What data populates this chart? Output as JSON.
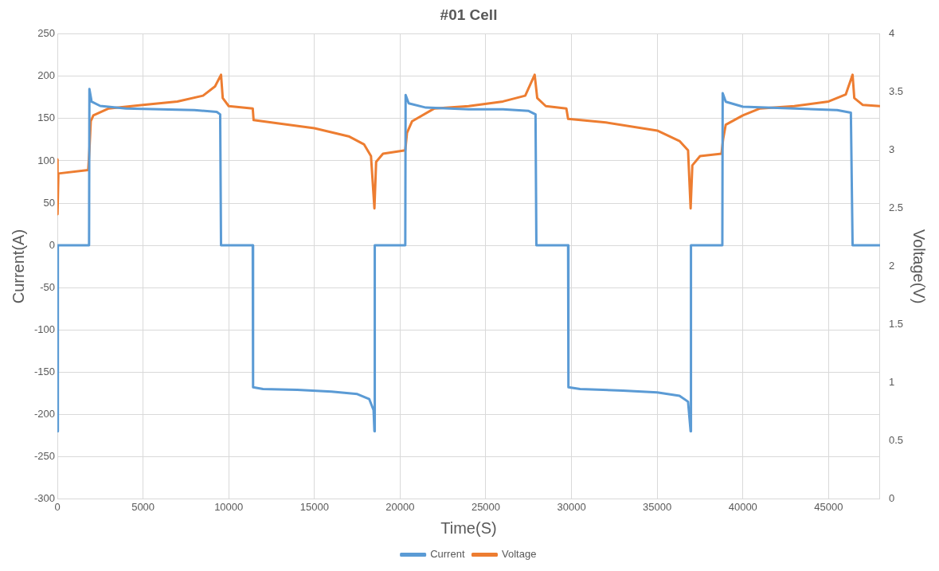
{
  "chart_data": {
    "type": "line",
    "title": "#01 Cell",
    "xlabel": "Time(S)",
    "ylabel": "Current(A)",
    "y2label": "Voltage(V)",
    "xlim": [
      0,
      48000
    ],
    "xticks": [
      0,
      5000,
      10000,
      15000,
      20000,
      25000,
      30000,
      35000,
      40000,
      45000
    ],
    "ylim": [
      -300,
      250
    ],
    "yticks": [
      -300,
      -250,
      -200,
      -150,
      -100,
      -50,
      0,
      50,
      100,
      150,
      200,
      250
    ],
    "y2lim": [
      0,
      4
    ],
    "y2ticks": [
      0,
      0.5,
      1,
      1.5,
      2,
      2.5,
      3,
      3.5,
      4
    ],
    "grid": true,
    "legend": "bottom",
    "marker": "none",
    "line_style": "solid",
    "series": [
      {
        "name": "Current",
        "color": "#5b9bd5",
        "x": [
          0,
          30,
          1850,
          1870,
          2000,
          2500,
          4000,
          6000,
          8000,
          9300,
          9500,
          9550,
          11400,
          11420,
          12000,
          14000,
          16000,
          17500,
          18200,
          18450,
          18500,
          18520,
          20300,
          20320,
          20500,
          21500,
          24000,
          26000,
          27500,
          27900,
          27950,
          29800,
          29820,
          30500,
          33000,
          35000,
          36300,
          36800,
          36950,
          36970,
          38800,
          38820,
          39000,
          40000,
          43000,
          45500,
          46300,
          46400,
          48000
        ],
        "values": [
          -220,
          0,
          0,
          185,
          170,
          165,
          162,
          161,
          160,
          158,
          155,
          0,
          0,
          -168,
          -170,
          -171,
          -173,
          -176,
          -182,
          -195,
          -220,
          0,
          0,
          178,
          168,
          163,
          161,
          161,
          159,
          155,
          0,
          0,
          -168,
          -170,
          -172,
          -174,
          -178,
          -185,
          -220,
          0,
          0,
          180,
          170,
          164,
          162,
          160,
          157,
          0,
          0
        ]
      },
      {
        "name": "Voltage",
        "color": "#ed7d31",
        "axis": "y2",
        "x": [
          0,
          10,
          60,
          1800,
          1870,
          1950,
          2100,
          3000,
          5000,
          7000,
          8500,
          9200,
          9550,
          9650,
          10000,
          11400,
          11450,
          13000,
          15000,
          17000,
          17900,
          18300,
          18500,
          18600,
          19000,
          20300,
          20400,
          20700,
          22000,
          24000,
          26000,
          27300,
          27850,
          28000,
          28500,
          29700,
          29800,
          32000,
          35000,
          36300,
          36800,
          36950,
          37050,
          37500,
          38750,
          38850,
          39000,
          40000,
          41000,
          43000,
          45000,
          46000,
          46400,
          46500,
          47000,
          48000
        ],
        "values": [
          2.92,
          2.45,
          2.8,
          2.83,
          3.0,
          3.25,
          3.3,
          3.36,
          3.39,
          3.42,
          3.47,
          3.55,
          3.65,
          3.45,
          3.38,
          3.36,
          3.26,
          3.23,
          3.19,
          3.12,
          3.05,
          2.95,
          2.5,
          2.9,
          2.97,
          3.0,
          3.15,
          3.25,
          3.36,
          3.38,
          3.42,
          3.47,
          3.65,
          3.45,
          3.38,
          3.36,
          3.27,
          3.24,
          3.17,
          3.08,
          3.0,
          2.5,
          2.87,
          2.95,
          2.97,
          3.1,
          3.22,
          3.3,
          3.36,
          3.38,
          3.42,
          3.48,
          3.65,
          3.45,
          3.39,
          3.38
        ]
      }
    ]
  }
}
